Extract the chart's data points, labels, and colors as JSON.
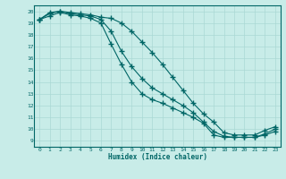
{
  "xlabel": "Humidex (Indice chaleur)",
  "bg_color": "#c8ece8",
  "grid_color": "#aad8d4",
  "line_color": "#006666",
  "xlim": [
    -0.5,
    23.5
  ],
  "ylim": [
    8.5,
    20.5
  ],
  "xticks": [
    0,
    1,
    2,
    3,
    4,
    5,
    6,
    7,
    8,
    9,
    10,
    11,
    12,
    13,
    14,
    15,
    16,
    17,
    18,
    19,
    20,
    21,
    22,
    23
  ],
  "yticks": [
    9,
    10,
    11,
    12,
    13,
    14,
    15,
    16,
    17,
    18,
    19,
    20
  ],
  "curve1_x": [
    0,
    1,
    2,
    3,
    4,
    5,
    6,
    7,
    8,
    9,
    10,
    11,
    12,
    13,
    14,
    15,
    16,
    17,
    18,
    19,
    20,
    21,
    22,
    23
  ],
  "curve1_y": [
    19.3,
    19.9,
    20.0,
    19.9,
    19.8,
    19.7,
    19.5,
    19.4,
    19.0,
    18.3,
    17.4,
    16.5,
    15.5,
    14.4,
    13.3,
    12.2,
    11.3,
    10.6,
    9.7,
    9.5,
    9.5,
    9.5,
    9.9,
    10.2
  ],
  "curve2_x": [
    0,
    1,
    2,
    3,
    4,
    5,
    6,
    7,
    8,
    9,
    10,
    11,
    12,
    13,
    14,
    15,
    16,
    17,
    18,
    19,
    20,
    21,
    22,
    23
  ],
  "curve2_y": [
    19.3,
    19.8,
    20.0,
    19.8,
    19.7,
    19.6,
    19.3,
    18.3,
    16.6,
    15.3,
    14.3,
    13.5,
    13.0,
    12.5,
    12.0,
    11.4,
    10.6,
    9.8,
    9.4,
    9.3,
    9.3,
    9.3,
    9.6,
    10.0
  ],
  "curve3_x": [
    0,
    1,
    2,
    3,
    4,
    5,
    6,
    7,
    8,
    9,
    10,
    11,
    12,
    13,
    14,
    15,
    16,
    17,
    18,
    19,
    20,
    21,
    22,
    23
  ],
  "curve3_y": [
    19.3,
    19.6,
    19.9,
    19.7,
    19.6,
    19.4,
    19.0,
    17.2,
    15.5,
    14.0,
    13.0,
    12.5,
    12.2,
    11.8,
    11.4,
    11.0,
    10.5,
    9.5,
    9.3,
    9.3,
    9.3,
    9.3,
    9.5,
    9.8
  ]
}
